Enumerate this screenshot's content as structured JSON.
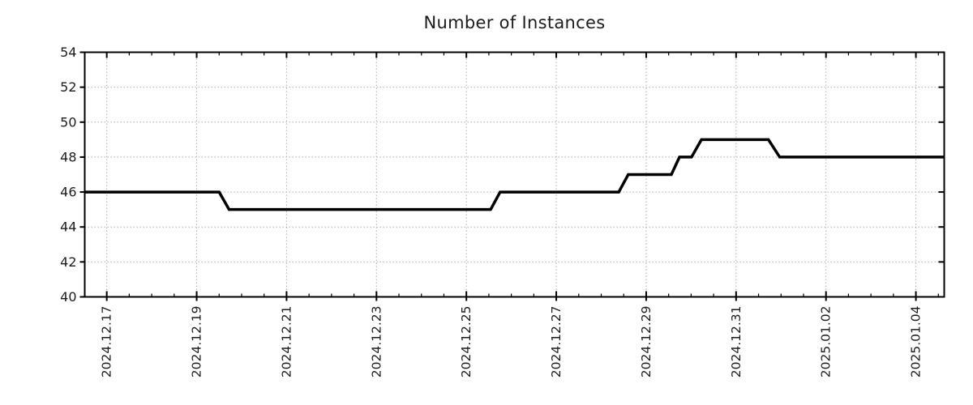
{
  "title": "Number of Instances",
  "chart_data": {
    "type": "line",
    "title": "Number of Instances",
    "xlabel": "",
    "ylabel": "",
    "ylim": [
      40,
      54
    ],
    "yticks": [
      40,
      42,
      44,
      46,
      48,
      50,
      52,
      54
    ],
    "x_tick_labels": [
      "2024.12.17",
      "2024.12.19",
      "2024.12.21",
      "2024.12.23",
      "2024.12.25",
      "2024.12.27",
      "2024.12.29",
      "2024.12.31",
      "2025.01.02",
      "2025.01.04"
    ],
    "x_tick_days": [
      0,
      2,
      4,
      6,
      8,
      10,
      12,
      14,
      16,
      18
    ],
    "xlim_days": [
      -0.49,
      18.63
    ],
    "minor_tick_step_days": 0.5,
    "grid": true,
    "grid_style": "dotted",
    "legend_position": "none",
    "series": [
      {
        "name": "instances",
        "color": "#000000",
        "points_day_value": [
          [
            -0.49,
            46
          ],
          [
            2.5,
            46
          ],
          [
            2.72,
            45
          ],
          [
            8.54,
            45
          ],
          [
            8.75,
            46
          ],
          [
            11.39,
            46
          ],
          [
            11.6,
            47
          ],
          [
            12.56,
            47
          ],
          [
            12.74,
            48
          ],
          [
            13.01,
            48
          ],
          [
            13.23,
            49
          ],
          [
            14.72,
            49
          ],
          [
            14.97,
            48
          ],
          [
            18.63,
            48
          ]
        ]
      }
    ],
    "level_changes": [
      {
        "around": "2024.12.19",
        "from": 46,
        "to": 45
      },
      {
        "around": "2024.12.25",
        "from": 45,
        "to": 46
      },
      {
        "around": "2024.12.28",
        "from": 46,
        "to": 47
      },
      {
        "around": "2024.12.29",
        "from": 47,
        "to": 48
      },
      {
        "around": "2024.12.30",
        "from": 48,
        "to": 49
      },
      {
        "around": "2024.12.31",
        "from": 49,
        "to": 48
      }
    ]
  },
  "colors": {
    "line": "#000000",
    "grid": "#b0b0b0",
    "axis": "#000000",
    "text": "#1c1c1c",
    "background": "#ffffff"
  }
}
